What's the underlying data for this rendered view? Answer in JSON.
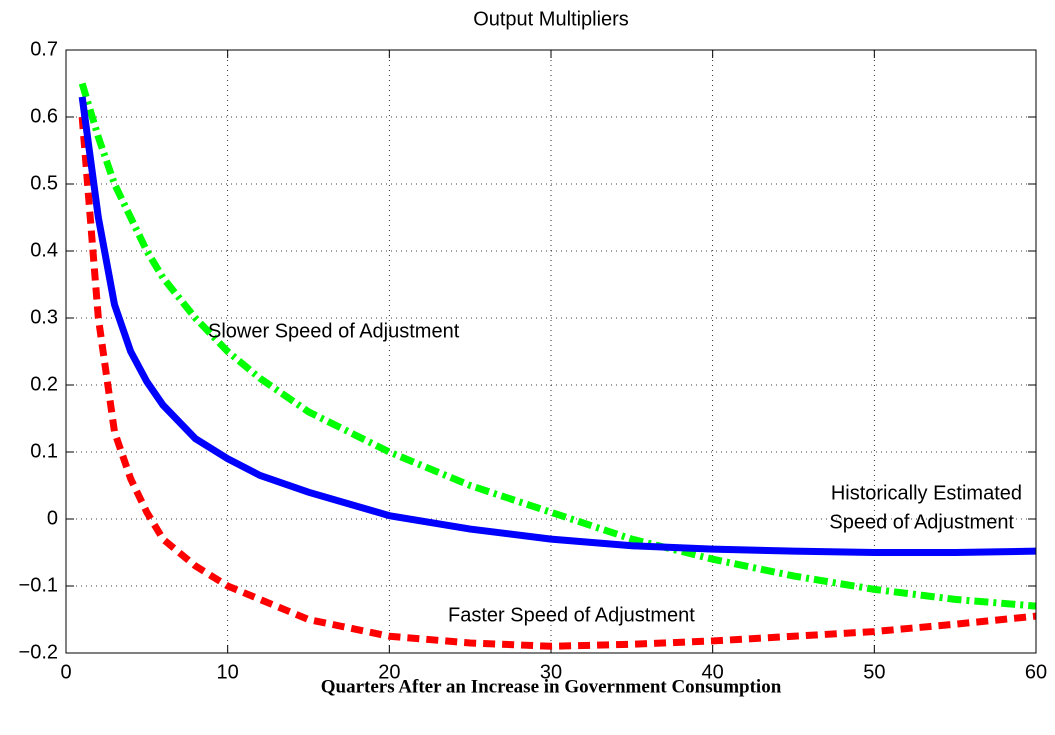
{
  "chart_data": {
    "type": "line",
    "title": "Output Multipliers",
    "x_label": "Quarters After an Increase in Government Consumption",
    "x": [
      1,
      2,
      3,
      4,
      5,
      6,
      8,
      10,
      12,
      15,
      20,
      25,
      30,
      35,
      40,
      45,
      50,
      55,
      60
    ],
    "series": [
      {
        "name": "Historically Estimated Speed of Adjustment",
        "color": "#0000ff",
        "style": "solid",
        "values": [
          0.63,
          0.45,
          0.32,
          0.25,
          0.205,
          0.17,
          0.12,
          0.09,
          0.065,
          0.04,
          0.005,
          -0.015,
          -0.03,
          -0.04,
          -0.045,
          -0.048,
          -0.05,
          -0.05,
          -0.048
        ]
      },
      {
        "name": "Slower Speed of Adjustment",
        "color": "#00ff00",
        "style": "dashdot",
        "values": [
          0.65,
          0.57,
          0.5,
          0.45,
          0.4,
          0.36,
          0.3,
          0.25,
          0.21,
          0.16,
          0.1,
          0.05,
          0.01,
          -0.03,
          -0.06,
          -0.085,
          -0.105,
          -0.12,
          -0.13
        ]
      },
      {
        "name": "Faster Speed of Adjustment",
        "color": "#ff0000",
        "style": "dashed",
        "values": [
          0.6,
          0.3,
          0.13,
          0.06,
          0.01,
          -0.03,
          -0.07,
          -0.1,
          -0.12,
          -0.15,
          -0.175,
          -0.185,
          -0.19,
          -0.187,
          -0.182,
          -0.175,
          -0.168,
          -0.157,
          -0.145
        ]
      }
    ],
    "annotations": [
      "Slower Speed of Adjustment",
      "Historically Estimated",
      "Speed of Adjustment",
      "Faster Speed of Adjustment"
    ],
    "xlim": [
      0,
      60
    ],
    "xticks": [
      0,
      10,
      20,
      30,
      40,
      50,
      60
    ],
    "ylim": [
      -0.2,
      0.7
    ],
    "yticks": [
      {
        "value": -0.2,
        "label": "−0.2"
      },
      {
        "value": -0.1,
        "label": "−0.1"
      },
      0,
      0.1,
      0.2,
      0.3,
      0.4,
      0.5,
      0.6,
      0.7
    ],
    "grid": true
  }
}
